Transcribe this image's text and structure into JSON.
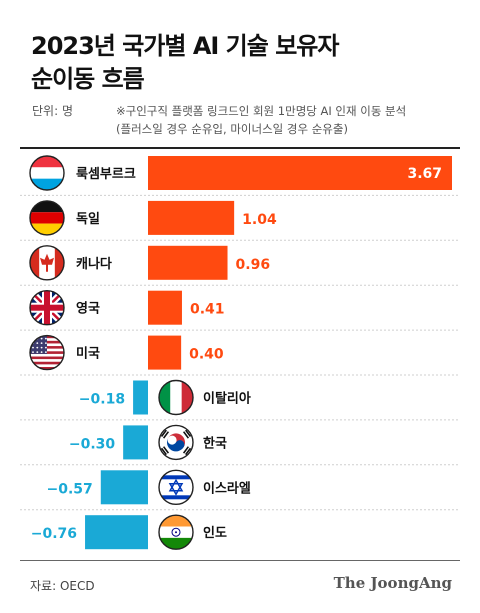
{
  "header": {
    "title": "2023년 국가별 AI 기술 보유자\n순이동 흐름",
    "unit": "단위: 명",
    "note": "※구인구직 플랫폼 링크드인 회원 1만명당 AI 인재 이동 분석\n(플러스일 경우 순유입, 마이너스일 경우 순유출)"
  },
  "footer": {
    "source": "자료: OECD",
    "logo": "The JoongAng"
  },
  "colors": {
    "positive": "#ff4a10",
    "negative": "#1aa9d6"
  },
  "chart_data": {
    "type": "bar",
    "orientation": "horizontal",
    "categories": [
      "룩셈부르크",
      "독일",
      "캐나다",
      "영국",
      "미국",
      "이탈리아",
      "한국",
      "이스라엘",
      "인도"
    ],
    "flags": [
      "luxembourg-flag-icon",
      "germany-flag-icon",
      "canada-flag-icon",
      "uk-flag-icon",
      "usa-flag-icon",
      "italy-flag-icon",
      "korea-flag-icon",
      "israel-flag-icon",
      "india-flag-icon"
    ],
    "values": [
      3.67,
      1.04,
      0.96,
      0.41,
      0.4,
      -0.18,
      -0.3,
      -0.57,
      -0.76
    ],
    "value_labels": [
      "3.67",
      "1.04",
      "0.96",
      "0.41",
      "0.40",
      "−0.18",
      "−0.30",
      "−0.57",
      "−0.76"
    ],
    "title": "2023년 국가별 AI 기술 보유자 순이동 흐름",
    "grid": false
  }
}
